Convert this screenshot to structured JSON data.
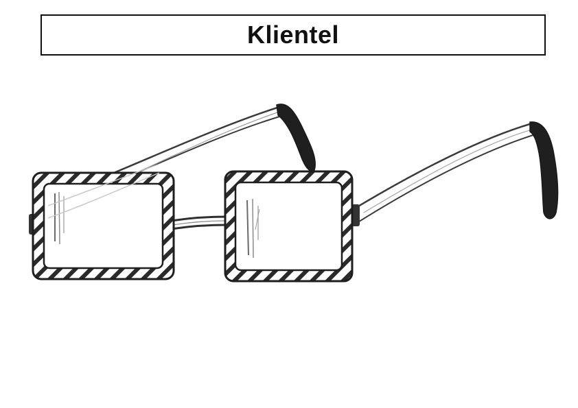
{
  "title": "Klientel",
  "illustration": {
    "icon": "glasses-icon",
    "style": "pencil sketch",
    "colors": {
      "ink": "#2a2a2a",
      "shade": "#555555",
      "light": "#bdbdbd"
    }
  }
}
